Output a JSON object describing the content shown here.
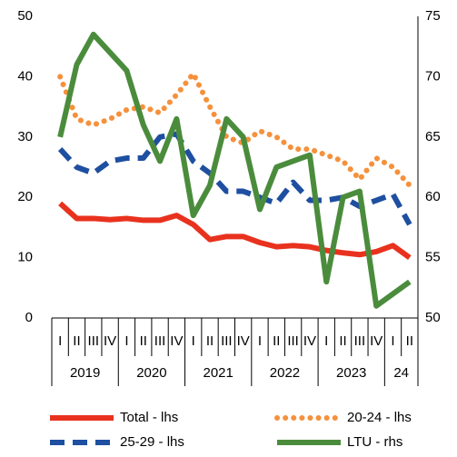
{
  "chart_data": {
    "type": "line",
    "categories": [
      "I",
      "II",
      "III",
      "IV",
      "I",
      "II",
      "III",
      "IV",
      "I",
      "II",
      "III",
      "IV",
      "I",
      "II",
      "III",
      "IV",
      "I",
      "II",
      "III",
      "IV",
      "I",
      "II"
    ],
    "category_groups": [
      "2019",
      "2020",
      "2021",
      "2022",
      "2023",
      "24"
    ],
    "ylim": [
      0,
      50
    ],
    "yticks": [
      0,
      10,
      20,
      30,
      40,
      50
    ],
    "y2lim": [
      50,
      75
    ],
    "y2ticks": [
      50,
      55,
      60,
      65,
      70,
      75
    ],
    "grid": false,
    "legend": "bottom",
    "series": [
      {
        "name": "Total - lhs",
        "color": "#e8321e",
        "style": "solid",
        "values": [
          19,
          16.5,
          16.5,
          16.3,
          16.5,
          16.2,
          16.2,
          17,
          15.5,
          13,
          13.5,
          13.5,
          12.5,
          11.8,
          12,
          11.8,
          11.2,
          10.8,
          10.5,
          11,
          12,
          10
        ]
      },
      {
        "name": "20-24 - lhs",
        "color": "#f5913c",
        "style": "dotted",
        "values": [
          40,
          33,
          32,
          33,
          34.5,
          35,
          34,
          37,
          40.5,
          35,
          30,
          29,
          31,
          30,
          28,
          28,
          27,
          26,
          23,
          26.5,
          25,
          22
        ]
      },
      {
        "name": "25-29 - lhs",
        "color": "#1e4fa0",
        "style": "dashed",
        "values": [
          28,
          25,
          24,
          26,
          26.5,
          26.5,
          30,
          30.5,
          26,
          24,
          21,
          21,
          20,
          19,
          22.5,
          19.5,
          19.5,
          20,
          18.5,
          19.5,
          20.5,
          15.5
        ]
      },
      {
        "name": "LTU - rhs",
        "color": "#4a8c3c",
        "style": "solid",
        "axis": "y2",
        "values": [
          65,
          71,
          73.5,
          72,
          70.5,
          66,
          63,
          66.5,
          58.5,
          61,
          66.5,
          65,
          59,
          62.5,
          63,
          63.5,
          53,
          60,
          60.5,
          51,
          52,
          53
        ]
      }
    ]
  }
}
